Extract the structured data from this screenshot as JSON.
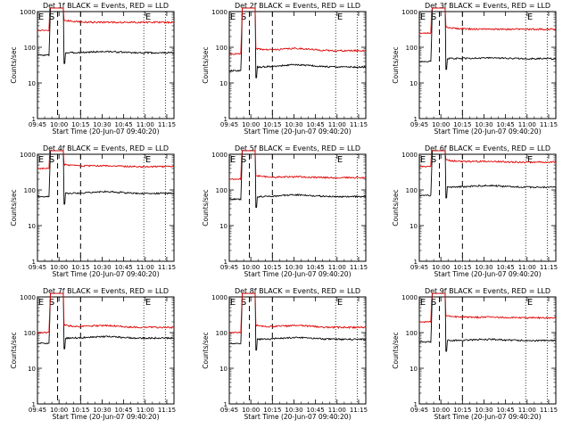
{
  "chart_data": [
    {
      "type": "line",
      "title": "Det 1f BLACK = Events, RED = LLD",
      "ylabel": "Counts/sec",
      "xlabel": "Start Time (20-Jun-07 09:40:20)",
      "x_tick_labels": [
        "09:45",
        "10:00",
        "10:15",
        "10:30",
        "10:45",
        "11:00",
        "11:15"
      ],
      "y_tick_labels": [
        "1",
        "10",
        "100",
        "1000"
      ],
      "markers": [
        "E",
        "S",
        "E"
      ],
      "yscale": "log",
      "ylim": [
        1,
        1000
      ],
      "series": [
        {
          "color": "#000000",
          "pre": 60,
          "post": 70,
          "hump": 0.08
        },
        {
          "color": "#e00000",
          "pre": 300,
          "post": 500,
          "hump": 0.0
        }
      ]
    },
    {
      "type": "line",
      "title": "Det 2f BLACK = Events, RED = LLD",
      "ylabel": "Counts/sec",
      "xlabel": "Start Time (20-Jun-07 09:40:20)",
      "x_tick_labels": [
        "09:45",
        "10:00",
        "10:15",
        "10:30",
        "10:45",
        "11:00",
        "11:15"
      ],
      "y_tick_labels": [
        "1",
        "10",
        "100",
        "1000"
      ],
      "markers": [
        "E",
        "S",
        "E"
      ],
      "yscale": "log",
      "ylim": [
        1,
        1000
      ],
      "series": [
        {
          "color": "#000000",
          "pre": 22,
          "post": 28,
          "hump": 0.15
        },
        {
          "color": "#e00000",
          "pre": 65,
          "post": 80,
          "hump": 0.15
        }
      ]
    },
    {
      "type": "line",
      "title": "Det 3f BLACK = Events, RED = LLD",
      "ylabel": "Counts/sec",
      "xlabel": "Start Time (20-Jun-07 09:40:20)",
      "x_tick_labels": [
        "09:45",
        "10:00",
        "10:15",
        "10:30",
        "10:45",
        "11:00",
        "11:15"
      ],
      "y_tick_labels": [
        "1",
        "10",
        "100",
        "1000"
      ],
      "markers": [
        "E",
        "S",
        "E"
      ],
      "yscale": "log",
      "ylim": [
        1,
        1000
      ],
      "series": [
        {
          "color": "#000000",
          "pre": 40,
          "post": 48,
          "hump": 0.05
        },
        {
          "color": "#e00000",
          "pre": 250,
          "post": 320,
          "hump": 0.0
        }
      ]
    },
    {
      "type": "line",
      "title": "Det 4f BLACK = Events, RED = LLD",
      "ylabel": "Counts/sec",
      "xlabel": "Start Time (20-Jun-07 09:40:20)",
      "x_tick_labels": [
        "09:45",
        "10:00",
        "10:15",
        "10:30",
        "10:45",
        "11:00",
        "11:15"
      ],
      "y_tick_labels": [
        "1",
        "10",
        "100",
        "1000"
      ],
      "markers": [
        "E",
        "S",
        "E"
      ],
      "yscale": "log",
      "ylim": [
        1,
        1000
      ],
      "series": [
        {
          "color": "#000000",
          "pre": 65,
          "post": 80,
          "hump": 0.12
        },
        {
          "color": "#e00000",
          "pre": 400,
          "post": 450,
          "hump": 0.05
        }
      ]
    },
    {
      "type": "line",
      "title": "Det 5f BLACK = Events, RED = LLD",
      "ylabel": "Counts/sec",
      "xlabel": "Start Time (20-Jun-07 09:40:20)",
      "x_tick_labels": [
        "09:45",
        "10:00",
        "10:15",
        "10:30",
        "10:45",
        "11:00",
        "11:15"
      ],
      "y_tick_labels": [
        "1",
        "10",
        "100",
        "1000"
      ],
      "markers": [
        "E",
        "S",
        "E"
      ],
      "yscale": "log",
      "ylim": [
        1,
        1000
      ],
      "series": [
        {
          "color": "#000000",
          "pre": 55,
          "post": 65,
          "hump": 0.12
        },
        {
          "color": "#e00000",
          "pre": 200,
          "post": 220,
          "hump": 0.05
        }
      ]
    },
    {
      "type": "line",
      "title": "Det 6f BLACK = Events, RED = LLD",
      "ylabel": "Counts/sec",
      "xlabel": "Start Time (20-Jun-07 09:40:20)",
      "x_tick_labels": [
        "09:45",
        "10:00",
        "10:15",
        "10:30",
        "10:45",
        "11:00",
        "11:15"
      ],
      "y_tick_labels": [
        "1",
        "10",
        "100",
        "1000"
      ],
      "markers": [
        "E",
        "S",
        "E"
      ],
      "yscale": "log",
      "ylim": [
        1,
        1000
      ],
      "series": [
        {
          "color": "#000000",
          "pre": 70,
          "post": 120,
          "hump": 0.1
        },
        {
          "color": "#e00000",
          "pre": 450,
          "post": 600,
          "hump": 0.05
        }
      ]
    },
    {
      "type": "line",
      "title": "Det 7f BLACK = Events, RED = LLD",
      "ylabel": "Counts/sec",
      "xlabel": "Start Time (20-Jun-07 09:40:20)",
      "x_tick_labels": [
        "09:45",
        "10:00",
        "10:15",
        "10:30",
        "10:45",
        "11:00",
        "11:15"
      ],
      "y_tick_labels": [
        "1",
        "10",
        "100",
        "1000"
      ],
      "markers": [
        "E",
        "S",
        "E"
      ],
      "yscale": "log",
      "ylim": [
        1,
        1000
      ],
      "series": [
        {
          "color": "#000000",
          "pre": 50,
          "post": 70,
          "hump": 0.1
        },
        {
          "color": "#e00000",
          "pre": 100,
          "post": 140,
          "hump": 0.12
        }
      ]
    },
    {
      "type": "line",
      "title": "Det 8f BLACK = Events, RED = LLD",
      "ylabel": "Counts/sec",
      "xlabel": "Start Time (20-Jun-07 09:40:20)",
      "x_tick_labels": [
        "09:45",
        "10:00",
        "10:15",
        "10:30",
        "10:45",
        "11:00",
        "11:15"
      ],
      "y_tick_labels": [
        "1",
        "10",
        "100",
        "1000"
      ],
      "markers": [
        "E",
        "S",
        "E"
      ],
      "yscale": "log",
      "ylim": [
        1,
        1000
      ],
      "series": [
        {
          "color": "#000000",
          "pre": 50,
          "post": 65,
          "hump": 0.12
        },
        {
          "color": "#e00000",
          "pre": 100,
          "post": 140,
          "hump": 0.12
        }
      ]
    },
    {
      "type": "line",
      "title": "Det 9f BLACK = Events, RED = LLD",
      "ylabel": "Counts/sec",
      "xlabel": "Start Time (20-Jun-07 09:40:20)",
      "x_tick_labels": [
        "09:45",
        "10:00",
        "10:15",
        "10:30",
        "10:45",
        "11:00",
        "11:15"
      ],
      "y_tick_labels": [
        "1",
        "10",
        "100",
        "1000"
      ],
      "markers": [
        "E",
        "S",
        "E"
      ],
      "yscale": "log",
      "ylim": [
        1,
        1000
      ],
      "series": [
        {
          "color": "#000000",
          "pre": 55,
          "post": 60,
          "hump": 0.08
        },
        {
          "color": "#e00000",
          "pre": 200,
          "post": 260,
          "hump": 0.03
        }
      ]
    }
  ]
}
